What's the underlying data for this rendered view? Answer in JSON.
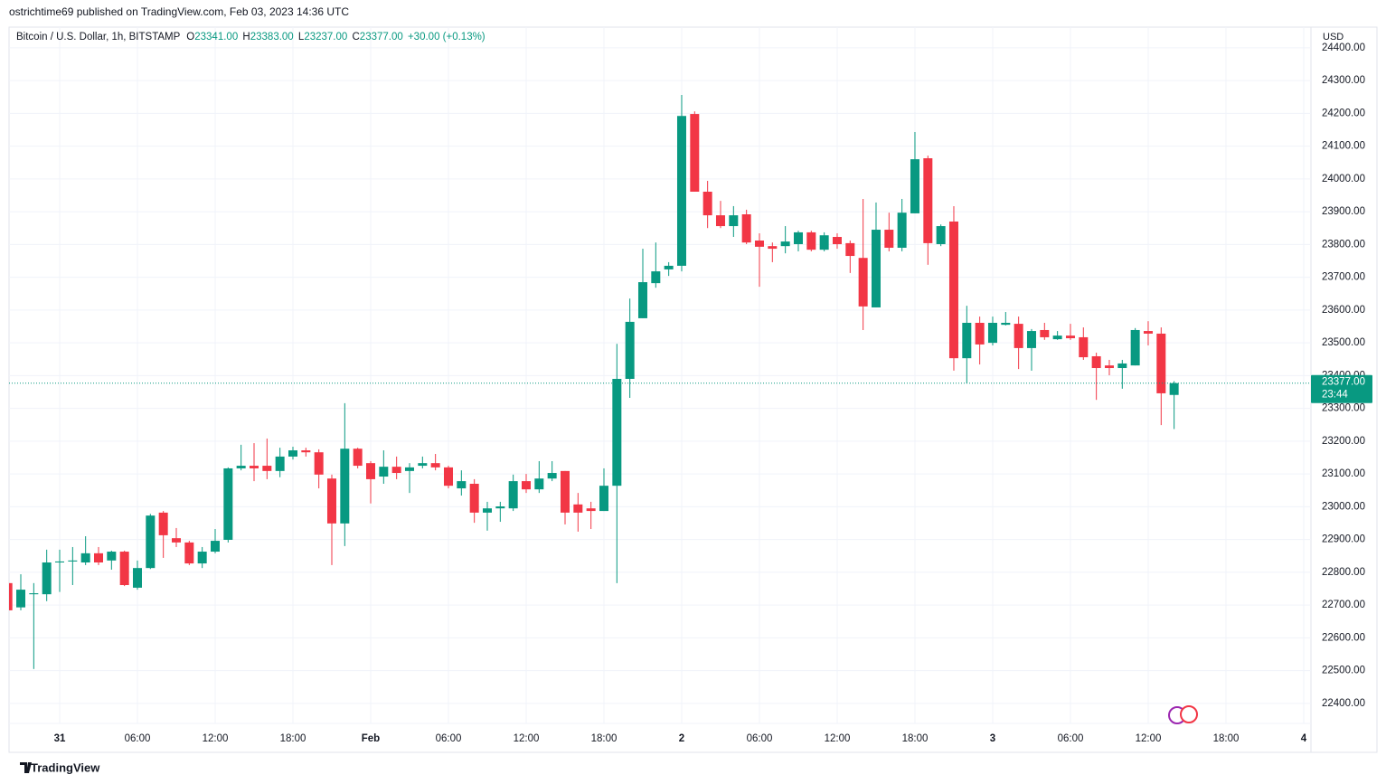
{
  "header": "ostrichtime69 published on TradingView.com, Feb 03, 2023 14:36 UTC",
  "footer": "TradingView",
  "chart_data": {
    "type": "candlestick",
    "symbol": "Bitcoin / U.S. Dollar, 1h, BITSTAMP",
    "ohlc_legend": [
      {
        "key": "O",
        "value": "23341.00"
      },
      {
        "key": "H",
        "value": "23383.00"
      },
      {
        "key": "L",
        "value": "23237.00"
      },
      {
        "key": "C",
        "value": "23377.00"
      }
    ],
    "change": "+30.00 (+0.13%)",
    "currency": "USD",
    "last_price_label": "23377.00",
    "countdown": "23:44",
    "up_color": "#089981",
    "down_color": "#f23645",
    "grid": true,
    "categories": [
      null,
      null,
      null,
      null,
      "31",
      null,
      null,
      null,
      null,
      null,
      "06:00",
      null,
      null,
      null,
      null,
      null,
      "12:00",
      null,
      null,
      null,
      null,
      null,
      "18:00",
      null,
      null,
      null,
      null,
      null,
      "Feb",
      null,
      null,
      null,
      null,
      null,
      "06:00",
      null,
      null,
      null,
      null,
      null,
      "12:00",
      null,
      null,
      null,
      null,
      null,
      "18:00",
      null,
      null,
      null,
      null,
      null,
      "2",
      null,
      null,
      null,
      null,
      null,
      "06:00",
      null,
      null,
      null,
      null,
      null,
      "12:00",
      null,
      null,
      null,
      null,
      null,
      "18:00",
      null,
      null,
      null,
      null,
      null,
      "3",
      null,
      null,
      null,
      null,
      null,
      "06:00",
      null,
      null,
      null,
      null,
      null,
      "12:00",
      null,
      null,
      null,
      null,
      null,
      "18:00",
      null,
      null,
      null,
      null,
      null,
      "4"
    ],
    "open": [
      22767,
      22693,
      22733,
      22733,
      22830,
      22833,
      22830,
      22858,
      22836,
      22863,
      22753,
      22813,
      22982,
      22904,
      22891,
      22827,
      22863,
      22899,
      23117,
      23125,
      23125,
      23109,
      23153,
      23172,
      23166,
      23086,
      22949,
      23177,
      23133,
      23092,
      23122,
      23109,
      23125,
      23133,
      23120,
      23056,
      23070,
      22982,
      22995,
      22995,
      23078,
      23053,
      23086,
      23109,
      23007,
      22995,
      22987,
      23064,
      23390,
      23575,
      23682,
      23724,
      23735,
      24198,
      23961,
      23889,
      23856,
      23892,
      23812,
      23795,
      23795,
      23801,
      23837,
      23784,
      23823,
      23804,
      23759,
      23608,
      23845,
      23790,
      23895,
      24063,
      23801,
      23870,
      23453,
      23561,
      23500,
      23555,
      23558,
      23484,
      23539,
      23511,
      23522,
      23517,
      23459,
      23431,
      23423,
      23431,
      23536,
      23528,
      23341,
      null,
      null,
      null,
      null,
      null,
      null,
      null,
      null,
      null,
      null
    ],
    "high": [
      22780,
      22794,
      22767,
      22869,
      22869,
      22877,
      22910,
      22877,
      22866,
      22866,
      22836,
      22978,
      22987,
      22935,
      22896,
      22877,
      22932,
      23120,
      23189,
      23194,
      23208,
      23180,
      23183,
      23180,
      23175,
      23098,
      23316,
      23180,
      23139,
      23172,
      23153,
      23133,
      23153,
      23161,
      23125,
      23111,
      23084,
      23015,
      23015,
      23098,
      23100,
      23139,
      23139,
      23109,
      23042,
      23015,
      23117,
      23497,
      23635,
      23787,
      23806,
      23746,
      24256,
      24206,
      23994,
      23933,
      23917,
      23906,
      23834,
      23806,
      23856,
      23842,
      23842,
      23837,
      23834,
      23812,
      23939,
      23928,
      23897,
      23939,
      24143,
      24071,
      23861,
      23917,
      23613,
      23580,
      23580,
      23594,
      23580,
      23542,
      23561,
      23536,
      23558,
      23547,
      23470,
      23448,
      23448,
      23545,
      23566,
      23547,
      23383,
      null,
      null,
      null,
      null,
      null,
      null,
      null,
      null,
      null,
      null
    ],
    "low": [
      22680,
      22684,
      22505,
      22712,
      22740,
      22761,
      22822,
      22822,
      22808,
      22758,
      22747,
      22810,
      22844,
      22877,
      22822,
      22813,
      22858,
      22891,
      23111,
      23078,
      23084,
      23090,
      23144,
      23153,
      23056,
      22822,
      22880,
      23117,
      23010,
      23070,
      23084,
      23042,
      23117,
      23111,
      23056,
      23034,
      22951,
      22927,
      22954,
      22987,
      23042,
      23042,
      23078,
      22946,
      22924,
      22932,
      22987,
      22767,
      23332,
      23575,
      23668,
      23704,
      23718,
      23961,
      23850,
      23850,
      23823,
      23801,
      23671,
      23746,
      23773,
      23779,
      23779,
      23779,
      23787,
      23713,
      23539,
      23608,
      23779,
      23779,
      23895,
      23738,
      23795,
      23415,
      23376,
      23434,
      23492,
      23553,
      23420,
      23415,
      23509,
      23509,
      23509,
      23448,
      23326,
      23401,
      23360,
      23431,
      23492,
      23249,
      23237,
      null,
      null,
      null,
      null,
      null,
      null,
      null,
      null,
      null,
      null
    ],
    "close": [
      22684,
      22747,
      22736,
      22830,
      22833,
      22836,
      22858,
      22830,
      22863,
      22761,
      22813,
      22973,
      22913,
      22891,
      22827,
      22863,
      22896,
      23117,
      23125,
      23117,
      23109,
      23153,
      23172,
      23166,
      23098,
      22949,
      23177,
      23125,
      23084,
      23122,
      23103,
      23120,
      23133,
      23120,
      23064,
      23078,
      22982,
      22995,
      23001,
      23078,
      23053,
      23086,
      23103,
      22982,
      22982,
      22987,
      23064,
      23390,
      23564,
      23685,
      23718,
      23735,
      24192,
      23961,
      23889,
      23856,
      23889,
      23806,
      23793,
      23787,
      23809,
      23837,
      23784,
      23828,
      23801,
      23765,
      23611,
      23845,
      23790,
      23897,
      24060,
      23804,
      23856,
      23453,
      23561,
      23495,
      23561,
      23561,
      23484,
      23536,
      23517,
      23522,
      23514,
      23456,
      23423,
      23423,
      23437,
      23539,
      23528,
      23346,
      23377,
      null,
      null,
      null,
      null,
      null,
      null,
      null,
      null,
      null,
      null
    ],
    "ylim": [
      22339,
      24463
    ],
    "yticks": [
      {
        "value": 22400,
        "label": "22400.00"
      },
      {
        "value": 22500,
        "label": "22500.00"
      },
      {
        "value": 22600,
        "label": "22600.00"
      },
      {
        "value": 22700,
        "label": "22700.00"
      },
      {
        "value": 22800,
        "label": "22800.00"
      },
      {
        "value": 22900,
        "label": "22900.00"
      },
      {
        "value": 23000,
        "label": "23000.00"
      },
      {
        "value": 23100,
        "label": "23100.00"
      },
      {
        "value": 23200,
        "label": "23200.00"
      },
      {
        "value": 23300,
        "label": "23300.00"
      },
      {
        "value": 23400,
        "label": "23400.00"
      },
      {
        "value": 23500,
        "label": "23500.00"
      },
      {
        "value": 23600,
        "label": "23600.00"
      },
      {
        "value": 23700,
        "label": "23700.00"
      },
      {
        "value": 23800,
        "label": "23800.00"
      },
      {
        "value": 23900,
        "label": "23900.00"
      },
      {
        "value": 24000,
        "label": "24000.00"
      },
      {
        "value": 24100,
        "label": "24100.00"
      },
      {
        "value": 24200,
        "label": "24200.00"
      },
      {
        "value": 24300,
        "label": "24300.00"
      },
      {
        "value": 24400,
        "label": "24400.00"
      }
    ]
  }
}
